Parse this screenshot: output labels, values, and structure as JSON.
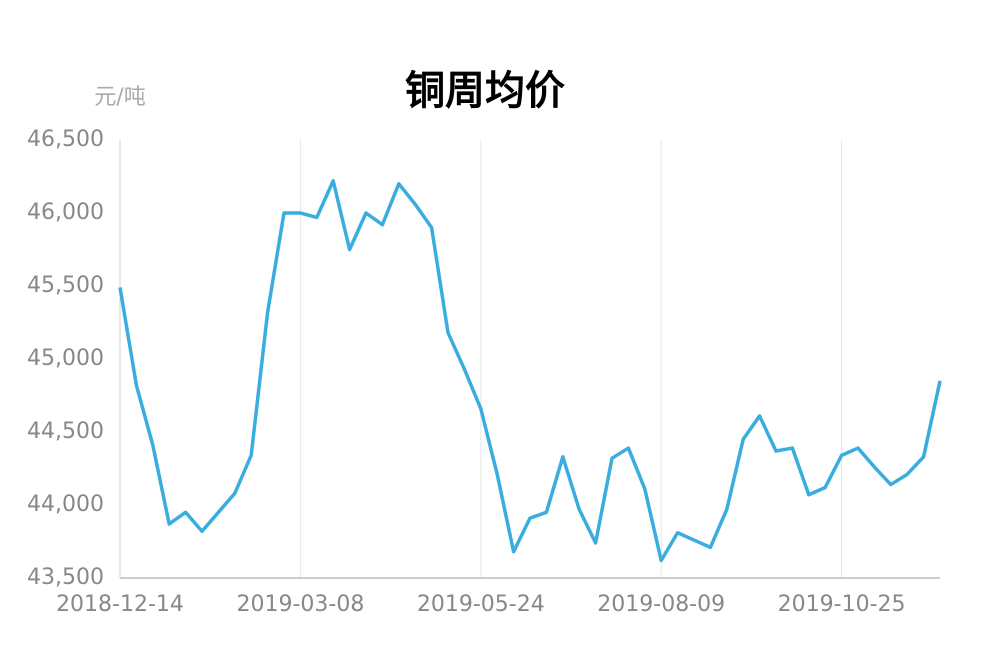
{
  "chart_data": {
    "type": "line",
    "title": "铜周均价",
    "y_label": "元/吨",
    "color": "#3aaddf",
    "categories": [
      "2018-12-14",
      null,
      null,
      null,
      null,
      null,
      null,
      null,
      null,
      null,
      null,
      "2019-03-08",
      null,
      null,
      null,
      null,
      null,
      null,
      null,
      null,
      null,
      null,
      "2019-05-24",
      null,
      null,
      null,
      null,
      null,
      null,
      null,
      null,
      null,
      null,
      "2019-08-09",
      null,
      null,
      null,
      null,
      null,
      null,
      null,
      null,
      null,
      null,
      "2019-10-25",
      null,
      null,
      null,
      null,
      null,
      null
    ],
    "values": [
      45490,
      44820,
      44410,
      43870,
      43950,
      43820,
      43950,
      44080,
      44340,
      45320,
      46000,
      46000,
      45970,
      46220,
      45750,
      46000,
      45920,
      46200,
      46060,
      45900,
      45180,
      44930,
      44660,
      44210,
      43680,
      43910,
      43950,
      44330,
      43970,
      43740,
      44320,
      44390,
      44110,
      43620,
      43810,
      43760,
      43710,
      43970,
      44450,
      44610,
      44370,
      44390,
      44070,
      44120,
      44340,
      44390,
      44260,
      44140,
      44210,
      44330,
      44850
    ],
    "ylim": [
      43500,
      46500
    ],
    "yticks": [
      {
        "value": 43500,
        "label": "43,500"
      },
      {
        "value": 44000,
        "label": "44,000"
      },
      {
        "value": 44500,
        "label": "44,500"
      },
      {
        "value": 45000,
        "label": "45,000"
      },
      {
        "value": 45500,
        "label": "45,500"
      },
      {
        "value": 46000,
        "label": "46,000"
      },
      {
        "value": 46500,
        "label": "46,500"
      }
    ],
    "grid": "x"
  }
}
